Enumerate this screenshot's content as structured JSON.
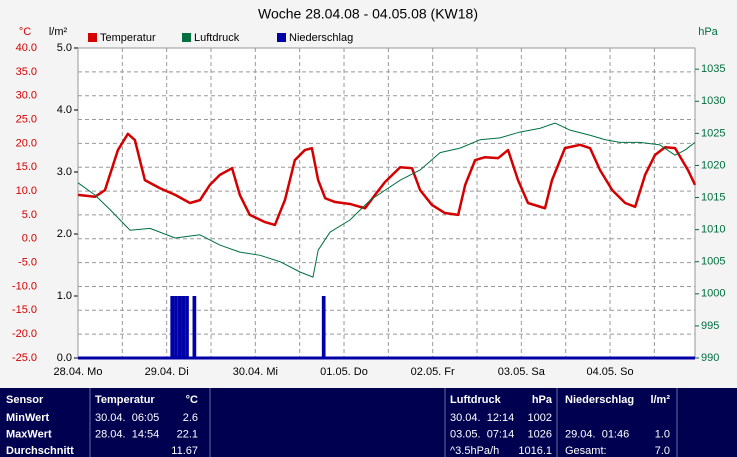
{
  "chart_data": {
    "type": "combo",
    "title": "Woche 28.04.08 - 04.05.08 (KW18)",
    "ylabel": "°C",
    "y3label": "l/m²",
    "y2label": "hPa",
    "xlim": [
      0,
      167
    ],
    "xticks": [
      {
        "value": 0,
        "label": "28.04. Mo"
      },
      {
        "value": 24,
        "label": "29.04. Di"
      },
      {
        "value": 48,
        "label": "30.04. Mi"
      },
      {
        "value": 72,
        "label": "01.05. Do"
      },
      {
        "value": 96,
        "label": "02.05. Fr"
      },
      {
        "value": 120,
        "label": "03.05. Sa"
      },
      {
        "value": 144,
        "label": "04.05. So"
      }
    ],
    "xminorticks": [
      12,
      36,
      60,
      84,
      108,
      132,
      156
    ],
    "ylim": [
      -25,
      40
    ],
    "yticks": [
      {
        "value": 40,
        "label": "40.0"
      },
      {
        "value": 35,
        "label": "35.0"
      },
      {
        "value": 30,
        "label": "30.0"
      },
      {
        "value": 25,
        "label": "25.0"
      },
      {
        "value": 20,
        "label": "20.0"
      },
      {
        "value": 15,
        "label": "15.0"
      },
      {
        "value": 10,
        "label": "10.0"
      },
      {
        "value": 5,
        "label": "5.0"
      },
      {
        "value": 0,
        "label": "0.0"
      },
      {
        "value": -5,
        "label": "-5.0"
      },
      {
        "value": -10,
        "label": "-10.0"
      },
      {
        "value": -15,
        "label": "-15.0"
      },
      {
        "value": -20,
        "label": "-20.0"
      },
      {
        "value": -25,
        "label": "-25.0"
      }
    ],
    "y2lim": [
      990,
      1038.3
    ],
    "y2ticks": [
      990,
      995,
      1000,
      1005,
      1010,
      1015,
      1020,
      1025,
      1030,
      1035
    ],
    "y3lim": [
      0,
      5
    ],
    "y3ticks": [
      {
        "value": 5,
        "label": "5.0"
      },
      {
        "value": 4,
        "label": "4.0"
      },
      {
        "value": 3,
        "label": "3.0"
      },
      {
        "value": 2,
        "label": "2.0"
      },
      {
        "value": 1,
        "label": "1.0"
      },
      {
        "value": 0,
        "label": "0.0"
      }
    ],
    "grid": true,
    "series": [
      {
        "name": "Temperatur",
        "color": "#d40000",
        "type": "line",
        "x": [
          0,
          4.6,
          7.3,
          10.8,
          13.5,
          15.4,
          18.1,
          22.2,
          26.3,
          30.3,
          33.0,
          35.7,
          38.4,
          41.7,
          43.8,
          46.5,
          50.6,
          53.3,
          56.0,
          58.7,
          61.4,
          63.3,
          65.0,
          66.9,
          69.6,
          73.6,
          77.7,
          80.4,
          83.1,
          87.2,
          90.4,
          92.6,
          95.8,
          99.3,
          102.9,
          104.8,
          107.5,
          110.2,
          113.7,
          116.4,
          119.1,
          121.8,
          126.4,
          128.3,
          131.8,
          135.9,
          138.6,
          141.3,
          144.6,
          148.1,
          150.8,
          153.5,
          156.2,
          158.9,
          161.6,
          165.1,
          167.0
        ],
        "values": [
          9.2,
          8.8,
          10.2,
          18.6,
          22.0,
          20.7,
          12.3,
          10.6,
          9.2,
          7.5,
          8.1,
          11.3,
          13.4,
          14.8,
          9.2,
          5.0,
          3.5,
          2.9,
          8.1,
          16.5,
          18.6,
          19.0,
          12.3,
          8.5,
          7.7,
          7.3,
          6.4,
          9.2,
          11.9,
          15.0,
          14.8,
          10.2,
          7.1,
          5.4,
          5.0,
          11.3,
          16.5,
          17.1,
          16.9,
          18.6,
          12.3,
          7.5,
          6.4,
          12.3,
          19.0,
          19.7,
          19.0,
          14.4,
          10.2,
          7.5,
          6.7,
          13.4,
          17.6,
          19.2,
          19.0,
          14.4,
          11.3
        ]
      },
      {
        "name": "Luftdruck",
        "color": "#007040",
        "type": "line",
        "axis": "y2",
        "x": [
          0,
          4.6,
          8.7,
          14.1,
          19.5,
          26.3,
          33.0,
          38.4,
          43.8,
          49.3,
          54.7,
          60.1,
          63.6,
          65.0,
          68.2,
          73.6,
          79.1,
          87.2,
          92.6,
          98.0,
          103.4,
          108.8,
          114.2,
          119.6,
          125.1,
          129.1,
          133.2,
          138.6,
          142.7,
          146.7,
          152.1,
          157.5,
          161.6,
          164.3,
          167.0
        ],
        "values": [
          1017.3,
          1015.4,
          1013.1,
          1009.9,
          1010.2,
          1008.7,
          1009.2,
          1007.6,
          1006.5,
          1006.0,
          1005.0,
          1003.4,
          1002.6,
          1006.8,
          1009.6,
          1011.5,
          1014.6,
          1017.7,
          1019.3,
          1022.0,
          1022.7,
          1024.0,
          1024.3,
          1025.2,
          1025.8,
          1026.6,
          1025.5,
          1024.7,
          1024.0,
          1023.6,
          1023.6,
          1023.2,
          1021.6,
          1022.4,
          1023.6
        ]
      },
      {
        "name": "Niederschlag",
        "color": "#0000a8",
        "type": "bar",
        "axis": "y3",
        "x": [
          25,
          26,
          27,
          28,
          29,
          31,
          66
        ],
        "values": [
          1,
          1,
          1,
          1,
          1,
          1,
          1
        ]
      }
    ]
  },
  "table": {
    "header": [
      "Sensor",
      "Temperatur",
      "°C",
      "Luftdruck",
      "hPa",
      "Niederschlag",
      "l/m²"
    ],
    "rows": [
      [
        "MinWert",
        "30.04.  06:05",
        "2.6",
        "30.04.  12:14",
        "1002",
        null,
        null
      ],
      [
        "MaxWert",
        "28.04.  14:54",
        "22.1",
        "03.05.  07:14",
        "1026",
        "29.04.  01:46",
        "1.0"
      ],
      [
        "Durchschnitt",
        null,
        "11.67",
        "^3.5hPa/h",
        "1016.1",
        "Gesamt:",
        "7.0"
      ]
    ]
  }
}
